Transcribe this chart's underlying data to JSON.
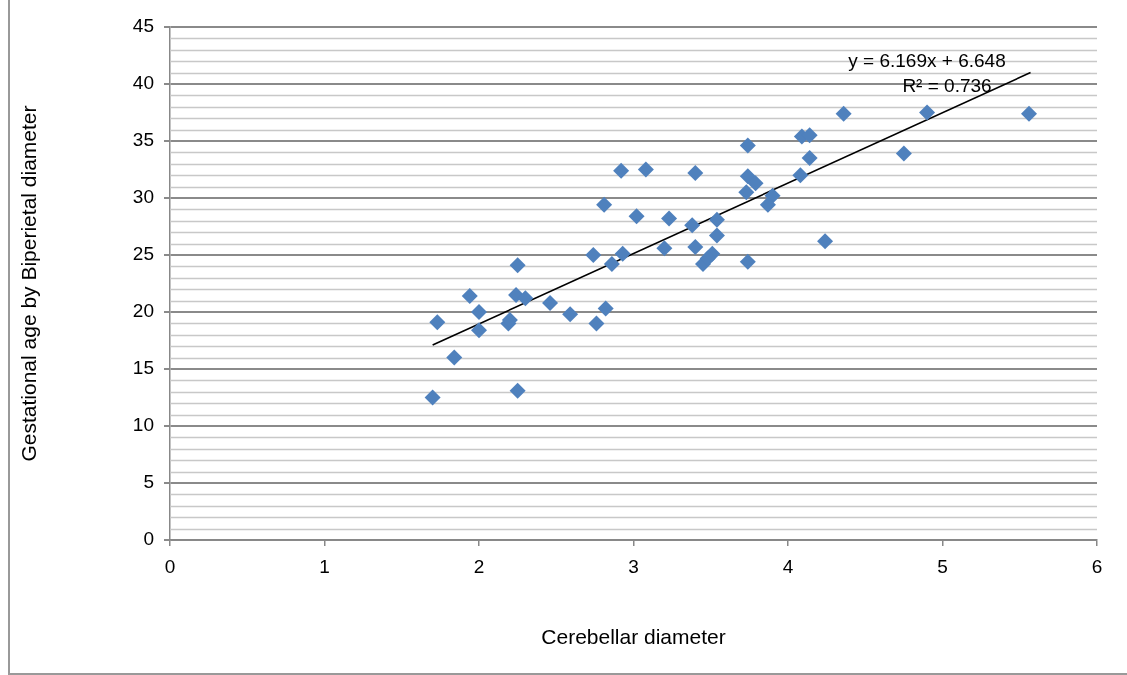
{
  "chart_data": {
    "type": "scatter",
    "xlabel": "Cerebellar diameter",
    "ylabel": "Gestational age by Biperietal diameter",
    "xlim": [
      0,
      6
    ],
    "xticks": [
      0,
      1,
      2,
      3,
      4,
      5,
      6
    ],
    "ylim": [
      0,
      45
    ],
    "yticks": [
      0,
      5,
      10,
      15,
      20,
      25,
      30,
      35,
      40,
      45
    ],
    "grid": "y",
    "legend": false,
    "marker": "diamond",
    "annotations": [
      "y = 6.169x + 6.648",
      "R² = 0.736"
    ],
    "series": [
      {
        "color": "#4f81bd",
        "x": [
          1.7,
          1.73,
          1.84,
          1.94,
          2.0,
          2.0,
          2.19,
          2.2,
          2.25,
          2.24,
          2.3,
          2.25,
          2.46,
          2.59,
          2.76,
          2.82,
          2.74,
          2.86,
          2.93,
          2.81,
          2.92,
          3.08,
          3.02,
          3.23,
          3.2,
          3.4,
          3.38,
          3.4,
          3.45,
          3.51,
          3.48,
          3.54,
          3.54,
          3.74,
          3.74,
          3.74,
          3.73,
          4.75,
          4.36,
          4.9,
          5.56,
          4.09,
          4.14,
          4.14,
          4.08,
          4.24,
          3.79,
          3.9,
          3.87
        ],
        "values": [
          12.5,
          19.1,
          16.0,
          21.4,
          20.0,
          18.4,
          19.0,
          19.3,
          24.1,
          21.5,
          21.2,
          13.1,
          20.8,
          19.8,
          19.0,
          20.3,
          25.0,
          24.2,
          25.1,
          29.4,
          32.4,
          32.5,
          28.4,
          28.2,
          25.6,
          32.2,
          27.6,
          25.7,
          24.2,
          25.1,
          24.7,
          28.1,
          26.7,
          34.6,
          24.4,
          31.9,
          30.5,
          33.9,
          37.4,
          37.5,
          37.4,
          35.4,
          35.5,
          33.5,
          32.0,
          26.2,
          31.3,
          30.2,
          29.4
        ]
      },
      {
        "type": "line",
        "color": "#000000",
        "marker": "none",
        "x": [
          1.7,
          5.57
        ],
        "values": [
          17.1,
          41.0
        ]
      }
    ]
  }
}
